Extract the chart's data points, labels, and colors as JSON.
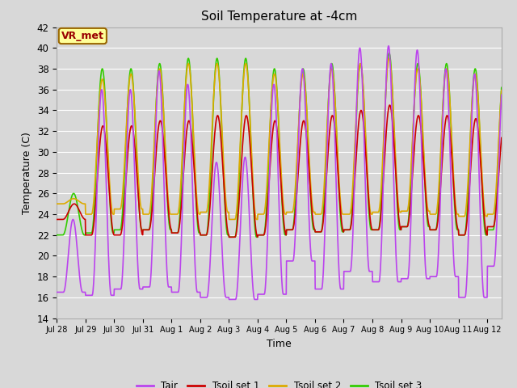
{
  "title": "Soil Temperature at -4cm",
  "xlabel": "Time",
  "ylabel": "Temperature (C)",
  "ylim": [
    14,
    42
  ],
  "yticks": [
    14,
    16,
    18,
    20,
    22,
    24,
    26,
    28,
    30,
    32,
    34,
    36,
    38,
    40,
    42
  ],
  "bg_color": "#d8d8d8",
  "plot_bg_color": "#d8d8d8",
  "line_colors": {
    "Tair": "#bb44ee",
    "Tsoil set 1": "#cc0000",
    "Tsoil set 2": "#ddaa00",
    "Tsoil set 3": "#33cc00"
  },
  "annotation_text": "VR_met",
  "annotation_bg": "#ffff99",
  "annotation_border": "#996600",
  "annotation_text_color": "#990000",
  "n_days": 15.5,
  "xtick_labels": [
    "Jul 28",
    "Jul 29",
    "Jul 30",
    "Jul 31",
    "Aug 1",
    "Aug 2",
    "Aug 3",
    "Aug 4",
    "Aug 5",
    "Aug 6",
    "Aug 7",
    "Aug 8",
    "Aug 9",
    "Aug 10",
    "Aug 11",
    "Aug 12"
  ],
  "grid_color": "#ffffff",
  "line_width": 1.2
}
